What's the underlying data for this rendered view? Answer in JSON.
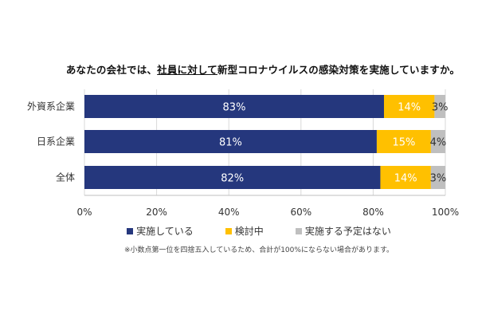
{
  "chart_data": {
    "type": "bar",
    "stacked": true,
    "orientation": "horizontal",
    "title_parts": [
      "あなたの会社では、",
      "社員に対して",
      "新型コロナウイルスの感染対策を実施していますか。"
    ],
    "categories": [
      "外資系企業",
      "日系企業",
      "全体"
    ],
    "series": [
      {
        "name": "実施している",
        "values": [
          83,
          81,
          82
        ],
        "labels": [
          "83%",
          "81%",
          "82%"
        ],
        "color": "#25377d",
        "label_color": "#ffffff"
      },
      {
        "name": "検討中",
        "values": [
          14,
          15,
          14
        ],
        "labels": [
          "14%",
          "15%",
          "14%"
        ],
        "color": "#ffc000",
        "label_color": "#ffffff"
      },
      {
        "name": "実施する予定はない",
        "values": [
          3,
          4,
          3
        ],
        "labels": [
          "3%",
          "4%",
          "3%"
        ],
        "color": "#bfbfbf",
        "label_color": "#333333"
      }
    ],
    "xlim": [
      0,
      100
    ],
    "xticks": [
      "0%",
      "20%",
      "40%",
      "60%",
      "80%",
      "100%"
    ],
    "grid": true,
    "legend_position": "bottom",
    "note": "※小数点第一位を四捨五入しているため、合計が100%にならない場合があります。"
  }
}
